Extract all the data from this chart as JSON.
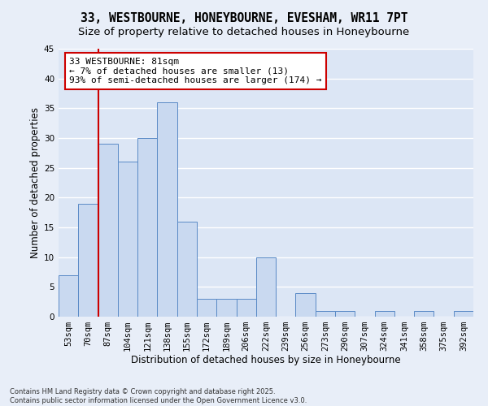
{
  "title_line1": "33, WESTBOURNE, HONEYBOURNE, EVESHAM, WR11 7PT",
  "title_line2": "Size of property relative to detached houses in Honeybourne",
  "xlabel": "Distribution of detached houses by size in Honeybourne",
  "ylabel": "Number of detached properties",
  "bar_labels": [
    "53sqm",
    "70sqm",
    "87sqm",
    "104sqm",
    "121sqm",
    "138sqm",
    "155sqm",
    "172sqm",
    "189sqm",
    "206sqm",
    "222sqm",
    "239sqm",
    "256sqm",
    "273sqm",
    "290sqm",
    "307sqm",
    "324sqm",
    "341sqm",
    "358sqm",
    "375sqm",
    "392sqm"
  ],
  "bar_values": [
    7,
    19,
    29,
    26,
    30,
    36,
    16,
    3,
    3,
    3,
    10,
    0,
    4,
    1,
    1,
    0,
    1,
    0,
    1,
    0,
    1
  ],
  "bar_color": "#c9d9f0",
  "bar_edge_color": "#5a8ac6",
  "annotation_text": "33 WESTBOURNE: 81sqm\n← 7% of detached houses are smaller (13)\n93% of semi-detached houses are larger (174) →",
  "annotation_box_color": "#ffffff",
  "annotation_box_edge": "#cc0000",
  "vline_x": 1.5,
  "vline_color": "#cc0000",
  "ylim": [
    0,
    45
  ],
  "yticks": [
    0,
    5,
    10,
    15,
    20,
    25,
    30,
    35,
    40,
    45
  ],
  "background_color": "#e8eef8",
  "plot_bg_color": "#dce6f5",
  "grid_color": "#ffffff",
  "footer_text": "Contains HM Land Registry data © Crown copyright and database right 2025.\nContains public sector information licensed under the Open Government Licence v3.0.",
  "title_fontsize": 10.5,
  "subtitle_fontsize": 9.5,
  "axis_label_fontsize": 8.5,
  "tick_fontsize": 7.5,
  "annotation_fontsize": 8
}
